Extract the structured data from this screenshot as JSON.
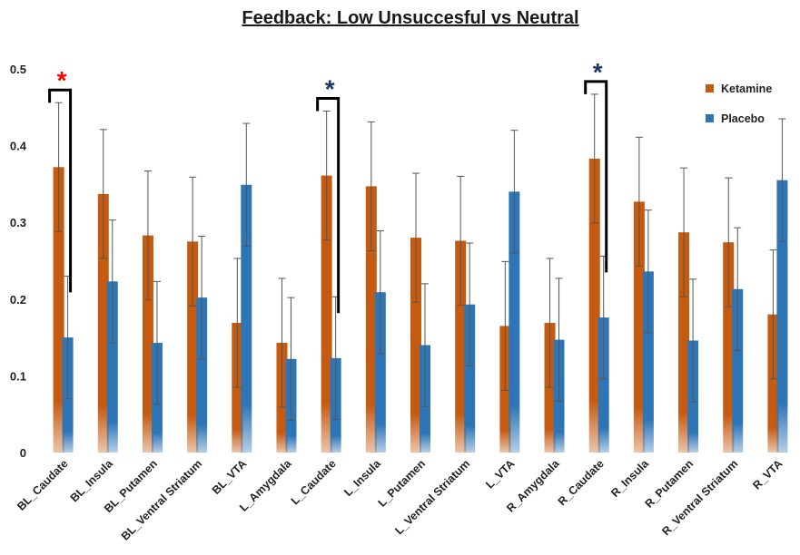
{
  "chart_data": {
    "type": "bar",
    "title": "Feedback: Low Unsuccesful vs Neutral",
    "xlabel": "",
    "ylabel": "",
    "ylim": [
      0,
      0.5
    ],
    "yticks": [
      "0",
      "0.1",
      "0.2",
      "0.3",
      "0.4",
      "0.5"
    ],
    "grid": false,
    "legend_position": "top-right",
    "categories": [
      "BL_Caudate",
      "BL_Insula",
      "BL_Putamen",
      "BL_Ventral Striatum",
      "BL_VTA",
      "L_Amygdala",
      "L_Caudate",
      "L_Insula",
      "L_Putamen",
      "L_Ventral Striatum",
      "L_VTA",
      "R_Amygdala",
      "R_Caudate",
      "R_Insula",
      "R_Putamen",
      "R_Ventral Striatum",
      "R_VTA"
    ],
    "series": [
      {
        "name": "Ketamine",
        "color": "#C55A11",
        "values": [
          0.372,
          0.337,
          0.283,
          0.275,
          0.169,
          0.143,
          0.361,
          0.347,
          0.28,
          0.276,
          0.165,
          0.169,
          0.383,
          0.327,
          0.287,
          0.274,
          0.18
        ],
        "errors": [
          0.084,
          0.084,
          0.084,
          0.084,
          0.084,
          0.084,
          0.084,
          0.084,
          0.084,
          0.084,
          0.084,
          0.084,
          0.084,
          0.084,
          0.084,
          0.084,
          0.084
        ]
      },
      {
        "name": "Placebo",
        "color": "#2E75B6",
        "values": [
          0.15,
          0.223,
          0.143,
          0.202,
          0.349,
          0.122,
          0.123,
          0.209,
          0.14,
          0.193,
          0.34,
          0.147,
          0.176,
          0.236,
          0.146,
          0.213,
          0.355
        ],
        "errors": [
          0.08,
          0.08,
          0.08,
          0.08,
          0.08,
          0.08,
          0.08,
          0.08,
          0.08,
          0.08,
          0.08,
          0.08,
          0.08,
          0.08,
          0.08,
          0.08,
          0.08
        ]
      }
    ],
    "annotations": [
      {
        "category": "BL_Caudate",
        "symbol": "*",
        "color": "#FF0000"
      },
      {
        "category": "L_Caudate",
        "symbol": "*",
        "color": "#1F3864"
      },
      {
        "category": "R_Caudate",
        "symbol": "*",
        "color": "#1F3864"
      }
    ]
  }
}
